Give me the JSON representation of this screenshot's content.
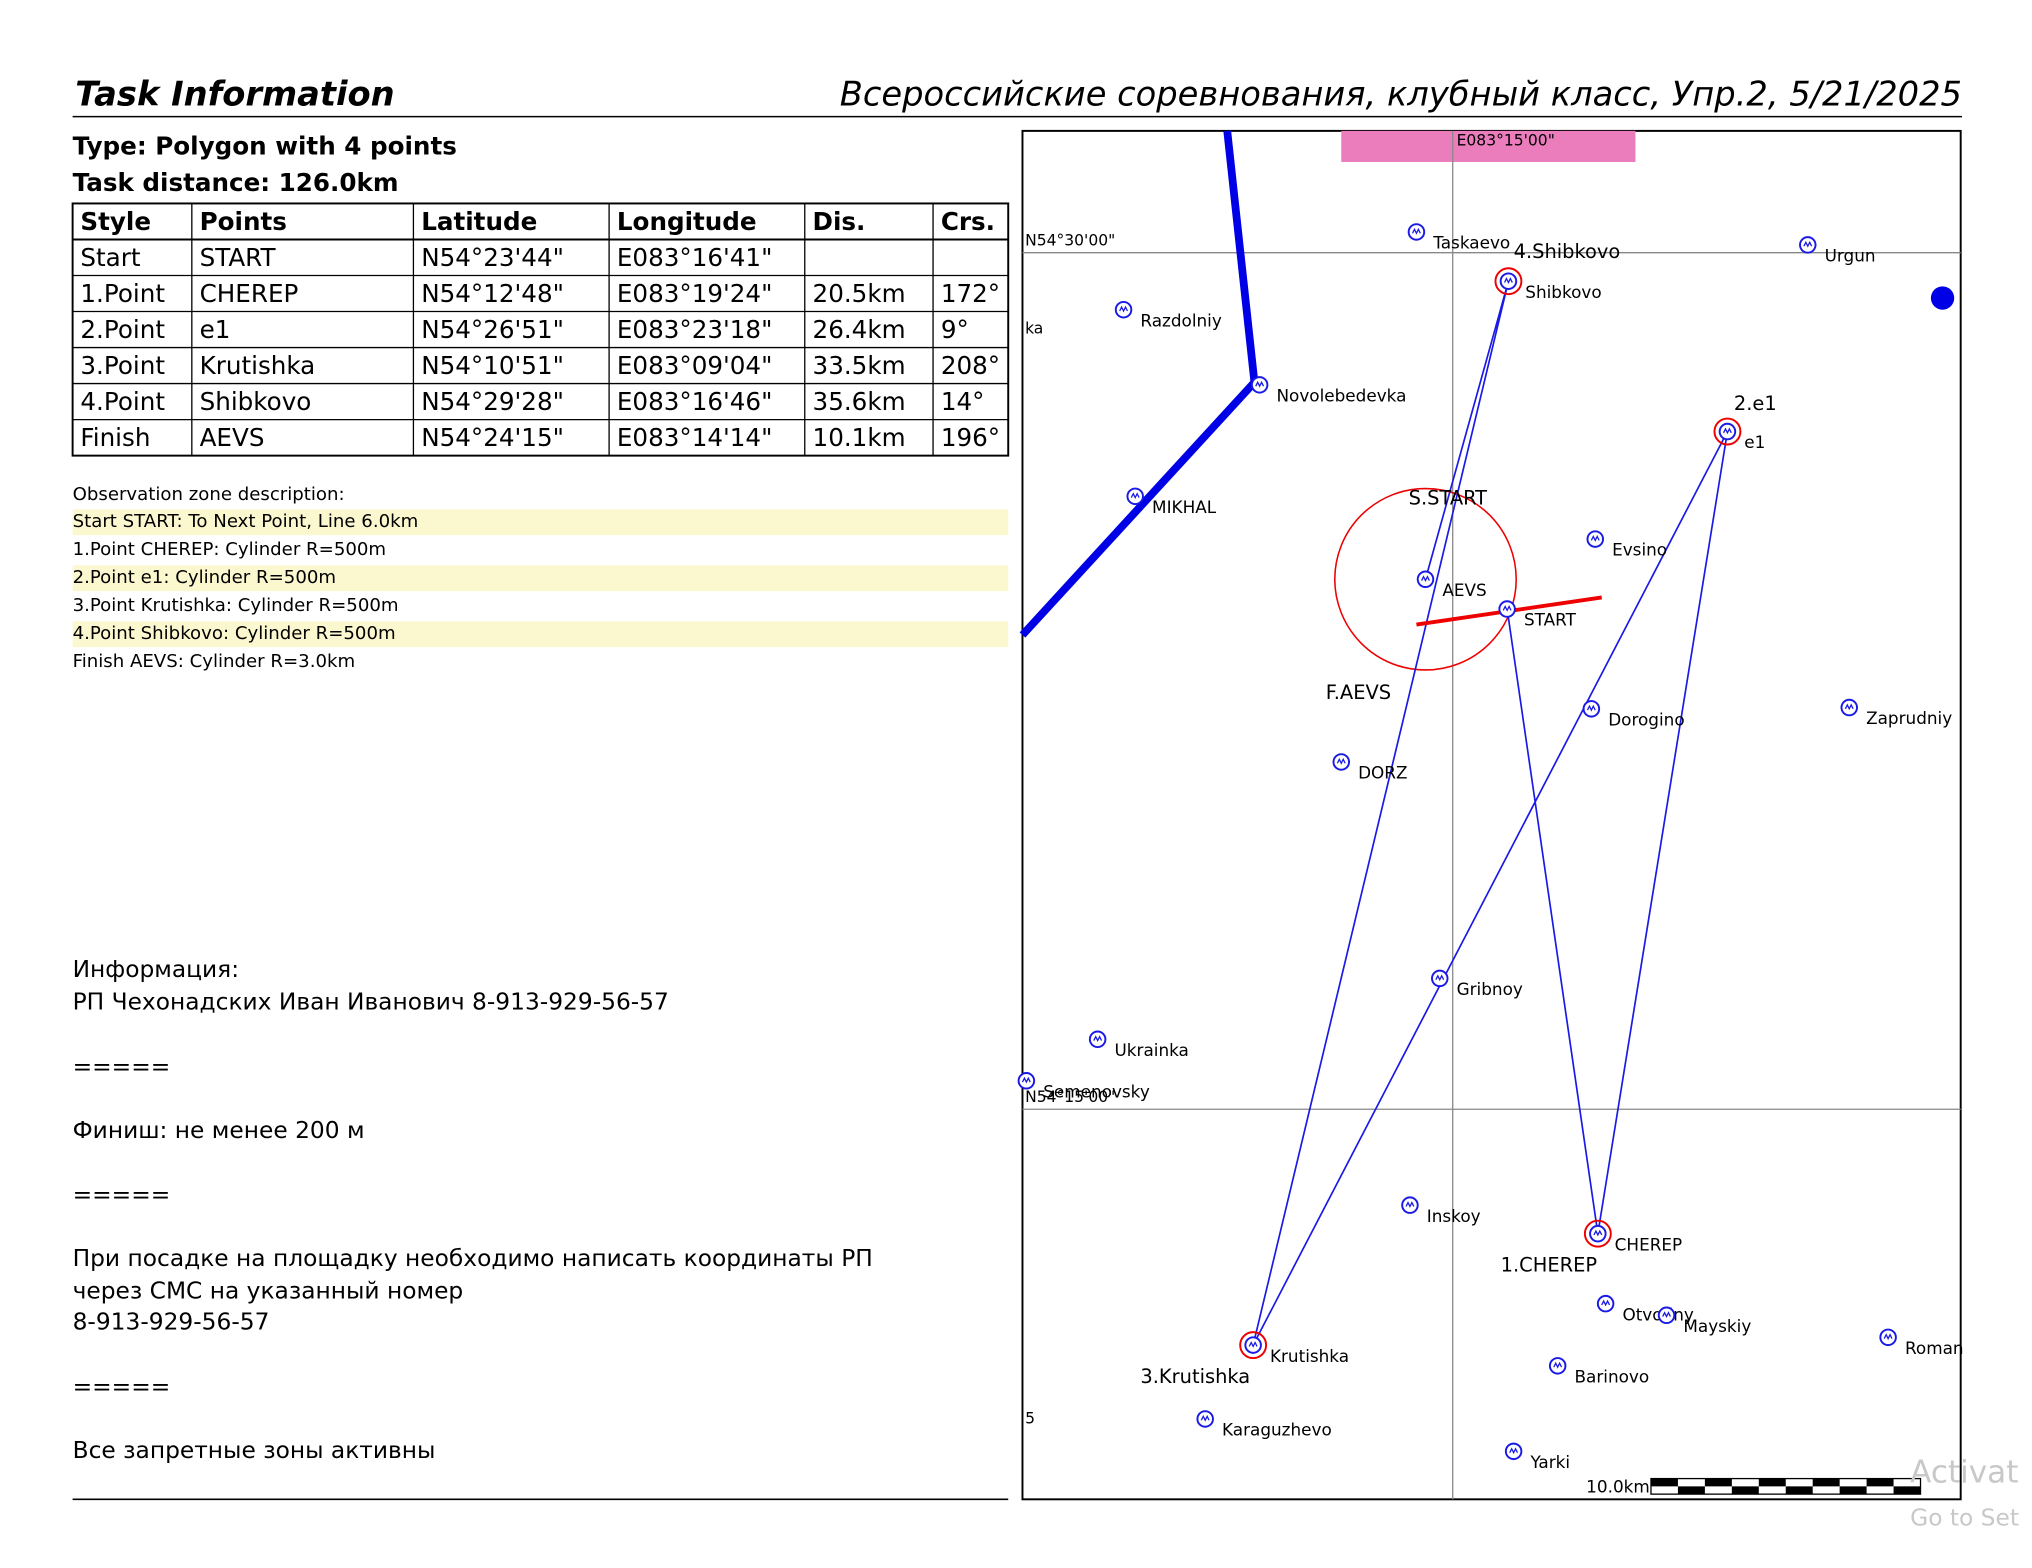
{
  "header": {
    "title": "Task Information",
    "subtitle": "Всероссийские соревнования, клубный класс, Упр.2, 5/21/2025"
  },
  "task": {
    "type": "Type: Polygon with 4 points",
    "distance": "Task distance: 126.0km"
  },
  "table": {
    "columns": [
      "Style",
      "Points",
      "Latitude",
      "Longitude",
      "Dis.",
      "Crs."
    ],
    "rows": [
      [
        "Start",
        "START",
        "N54°23'44\"",
        "E083°16'41\""
      ],
      [
        "1.Point",
        "CHEREP",
        "N54°12'48\"",
        "E083°19'24\"",
        "20.5km",
        "172°"
      ],
      [
        "2.Point",
        "e1",
        "N54°26'51\"",
        "E083°23'18\"",
        "26.4km",
        "9°"
      ],
      [
        "3.Point",
        "Krutishka",
        "N54°10'51\"",
        "E083°09'04\"",
        "33.5km",
        "208°"
      ],
      [
        "4.Point",
        "Shibkovo",
        "N54°29'28\"",
        "E083°16'46\"",
        "35.6km",
        "14°"
      ],
      [
        "Finish",
        "AEVS",
        "N54°24'15\"",
        "E083°14'14\"",
        "10.1km",
        "196°"
      ]
    ]
  },
  "observation_zones": {
    "title": "Observation zone description:",
    "lines": [
      "Start START: To Next Point, Line 6.0km",
      "1.Point CHEREP: Cylinder R=500m",
      "2.Point e1: Cylinder R=500m",
      "3.Point Krutishka: Cylinder R=500m",
      "4.Point Shibkovo: Cylinder R=500m",
      "Finish AEVS: Cylinder R=3.0km"
    ]
  },
  "information": [
    "Информация:",
    "РП Чехонадских Иван Иванович 8-913-929-56-57",
    "=====",
    "Финиш: не менее 200 м",
    "=====",
    "При посадке на площадку необходимо написать координаты РП",
    "через СМС на указанный номер",
    "8-913-929-56-57",
    "=====",
    "Все запретные зоны активны"
  ],
  "map": {
    "grid_labels": [
      "E083°15'00\"",
      "N54°30'00\"",
      "N54°15'00\""
    ],
    "waypoints": [
      "Taskaevo",
      "Urgun",
      "Razdolniy",
      "Novolebedevka",
      "MIKHAL",
      "Evsino",
      "AEVS",
      "START",
      "Dorogino",
      "Zaprudniy",
      "DORZ",
      "Gribnoy",
      "Ukrainka",
      "Semenovsky",
      "Inskoy",
      "Otvodny",
      "Mayskiy",
      "Roman",
      "Barinovo",
      "Karaguzhevo",
      "Yarki",
      "Shibkovo",
      "CHEREP",
      "Krutishka",
      "e1"
    ],
    "task_labels": [
      "4.Shibkovo",
      "2.e1",
      "S.START",
      "F.AEVS",
      "1.CHEREP",
      "3.Krutishka"
    ],
    "partial_labels": [
      "ka",
      "5"
    ],
    "scale": "10.0km"
  },
  "watermark": [
    "Activat",
    "Go to Set"
  ]
}
